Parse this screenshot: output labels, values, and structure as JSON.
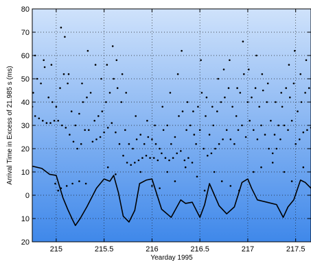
{
  "chart_data": {
    "type": "scatter",
    "title": "",
    "xlabel": "Yearday 1995",
    "ylabel": "Arrival Time in Excess of 21.985 s (ms)",
    "xlim": [
      214.75,
      217.66
    ],
    "ylim": [
      -20,
      80
    ],
    "y_direction": "down",
    "x_ticks": [
      215,
      215.5,
      216,
      216.5,
      217,
      217.5
    ],
    "x_tick_labels": [
      "215",
      "215.5",
      "216",
      "216.5",
      "217",
      "217.5"
    ],
    "y_ticks": [
      80,
      70,
      60,
      50,
      40,
      30,
      20,
      10,
      0,
      -10,
      -20
    ],
    "y_tick_labels": [
      "80",
      "70",
      "60",
      "50",
      "40",
      "30",
      "20",
      "10",
      "0",
      "10",
      "20"
    ],
    "grid": true,
    "background": {
      "top": "#cfe2fb",
      "bottom": "#3f88ea"
    },
    "marker_color": "#000000",
    "series": [
      {
        "type": "line",
        "x": [
          214.75,
          214.85,
          214.93,
          215.0,
          215.07,
          215.12,
          215.17,
          215.2,
          215.25,
          215.32,
          215.42,
          215.5,
          215.56,
          215.6,
          215.65,
          215.7,
          215.76,
          215.82,
          215.87,
          215.94,
          216.0,
          216.1,
          216.2,
          216.3,
          216.35,
          216.42,
          216.5,
          216.55,
          216.6,
          216.7,
          216.78,
          216.86,
          216.94,
          217.0,
          217.04,
          217.1,
          217.2,
          217.3,
          217.37,
          217.42,
          217.48,
          217.55,
          217.6,
          217.66
        ],
        "y": [
          12.5,
          11.5,
          9.0,
          8.5,
          -1.0,
          -6.0,
          -10.5,
          -13.0,
          -10.0,
          -5.0,
          3.0,
          7.0,
          6.0,
          8.5,
          1.0,
          -9.0,
          -11.5,
          -6.5,
          5.0,
          6.5,
          7.0,
          -6.0,
          -9.5,
          -2.0,
          -3.5,
          -3.0,
          -9.5,
          -4.0,
          5.0,
          -4.5,
          -8.0,
          -5.0,
          5.5,
          7.0,
          3.0,
          -2.0,
          -3.0,
          -4.0,
          -9.5,
          -5.0,
          -2.0,
          6.5,
          5.5,
          3.0
        ]
      },
      {
        "type": "scatter",
        "x": [
          214.75,
          214.78,
          214.82,
          214.86,
          214.9,
          214.94,
          214.98,
          215.02,
          215.06,
          215.1,
          215.14,
          215.18,
          215.22,
          215.26,
          215.3,
          215.34,
          215.38,
          215.42,
          215.46,
          215.5,
          215.54,
          215.58,
          215.62,
          215.66,
          215.7,
          215.74,
          215.78,
          215.82,
          215.86,
          215.9,
          215.94,
          215.98,
          216.02,
          216.06,
          216.1,
          216.14,
          216.18,
          216.22,
          216.26,
          216.3,
          216.34,
          216.38,
          216.42,
          216.46,
          216.5,
          216.54,
          216.58,
          216.62,
          216.66,
          216.7,
          216.74,
          216.78,
          216.82,
          216.86,
          216.9,
          216.94,
          216.98,
          217.02,
          217.06,
          217.1,
          217.14,
          217.18,
          217.22,
          217.26,
          217.3,
          217.34,
          217.38,
          217.42,
          217.46,
          217.5,
          217.54,
          217.58,
          217.62,
          217.66
        ],
        "y": [
          38,
          34,
          33,
          32,
          31,
          31,
          32,
          32,
          30,
          29,
          26,
          23,
          20,
          22,
          28,
          28,
          23,
          24,
          25,
          27,
          29,
          31,
          27,
          22,
          17,
          14,
          13,
          14,
          15,
          16,
          17,
          16,
          16,
          15,
          18,
          16,
          15,
          16,
          18,
          19,
          15,
          16,
          14,
          22,
          28,
          20,
          17,
          18,
          20,
          22,
          24,
          28,
          24,
          22,
          28,
          30,
          25,
          32,
          28,
          24,
          30,
          26,
          20,
          18,
          20,
          24,
          30,
          28,
          32,
          22,
          24,
          27,
          28,
          29
        ]
      },
      {
        "type": "scatter",
        "x": [
          214.76,
          214.8,
          214.84,
          214.88,
          214.92,
          214.96,
          215.0,
          215.04,
          215.08,
          215.12,
          215.16,
          215.2,
          215.24,
          215.28,
          215.32,
          215.36,
          215.4,
          215.44,
          215.48,
          215.52,
          215.56,
          215.6,
          215.64,
          215.68,
          215.72,
          215.76,
          215.8,
          215.84,
          215.88,
          215.92,
          215.96,
          216.0,
          216.04,
          216.08,
          216.12,
          216.16,
          216.2,
          216.24,
          216.28,
          216.32,
          216.36,
          216.4,
          216.44,
          216.48,
          216.52,
          216.56,
          216.6,
          216.64,
          216.68,
          216.72,
          216.76,
          216.8,
          216.84,
          216.88,
          216.92,
          216.96,
          217.0,
          217.04,
          217.08,
          217.12,
          217.16,
          217.2,
          217.24,
          217.28,
          217.32,
          217.36,
          217.4,
          217.44,
          217.48,
          217.52,
          217.56,
          217.6,
          217.64
        ],
        "y": [
          44,
          50,
          48,
          55,
          42,
          40,
          38,
          46,
          52,
          48,
          36,
          30,
          35,
          40,
          42,
          44,
          32,
          34,
          36,
          40,
          44,
          50,
          46,
          40,
          28,
          22,
          20,
          24,
          26,
          22,
          25,
          24,
          22,
          20,
          28,
          30,
          22,
          25,
          34,
          36,
          28,
          30,
          26,
          38,
          44,
          34,
          26,
          30,
          36,
          40,
          42,
          46,
          38,
          34,
          44,
          52,
          40,
          42,
          46,
          38,
          45,
          40,
          32,
          26,
          30,
          38,
          46,
          42,
          48,
          36,
          40,
          44,
          46
        ]
      },
      {
        "type": "scatter",
        "x": [
          214.78,
          214.87,
          214.95,
          215.05,
          215.09,
          215.13,
          215.27,
          215.33,
          215.41,
          215.47,
          215.53,
          215.59,
          215.63,
          215.69,
          215.73,
          215.83,
          215.95,
          216.03,
          216.11,
          216.19,
          216.27,
          216.31,
          216.37,
          216.43,
          216.51,
          216.57,
          216.63,
          216.69,
          216.75,
          216.81,
          216.89,
          216.95,
          217.01,
          217.09,
          217.15,
          217.21,
          217.29,
          217.35,
          217.43,
          217.49,
          217.55,
          217.61
        ],
        "y": [
          60,
          58,
          56,
          72,
          68,
          52,
          48,
          62,
          56,
          50,
          56,
          64,
          58,
          52,
          44,
          34,
          32,
          30,
          38,
          44,
          52,
          62,
          40,
          36,
          58,
          42,
          38,
          50,
          54,
          58,
          46,
          66,
          54,
          60,
          52,
          48,
          40,
          44,
          56,
          62,
          52,
          58
        ]
      },
      {
        "type": "scatter",
        "x": [
          214.99,
          215.02,
          215.05,
          215.11,
          215.17,
          215.24,
          215.31,
          215.54,
          215.62,
          215.88,
          216.0,
          216.08,
          216.16,
          216.24,
          216.35,
          216.47,
          216.55,
          216.65,
          216.73,
          216.82,
          216.91,
          217.06,
          217.14,
          217.26,
          217.38,
          217.46,
          217.58
        ],
        "y": [
          5,
          2,
          3,
          4,
          5,
          6,
          5,
          12,
          9,
          10,
          4,
          3,
          10,
          6,
          12,
          8,
          2,
          10,
          6,
          4,
          2,
          10,
          12,
          14,
          10,
          6,
          12
        ]
      }
    ]
  }
}
